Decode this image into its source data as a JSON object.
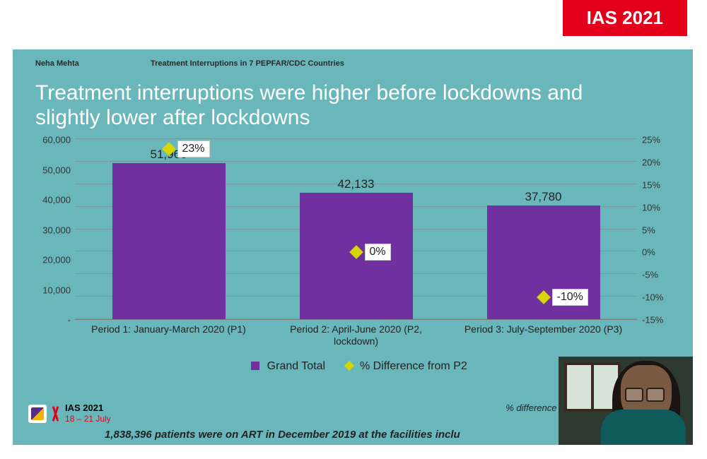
{
  "badge": {
    "text": "IAS 2021",
    "bg": "#e2001a",
    "color": "#ffffff"
  },
  "slide": {
    "bg": "#6ab7bb",
    "author": "Neha Mehta",
    "subtitle": "Treatment Interruptions in 7 PEPFAR/CDC Countries",
    "title": "Treatment interruptions were higher before lockdowns and slightly lower after lockdowns",
    "title_color": "#ffffff",
    "title_fontsize": 30
  },
  "chart": {
    "type": "bar+marker",
    "bar_color": "#7030a0",
    "marker_color": "#d6d600",
    "label_fontsize": 17,
    "axis_fontsize": 13,
    "y_left": {
      "min": 0,
      "max": 60000,
      "step": 10000,
      "ticks": [
        "-",
        "10,000",
        "20,000",
        "30,000",
        "40,000",
        "50,000",
        "60,000"
      ]
    },
    "y_right": {
      "min": -15,
      "max": 25,
      "step": 5,
      "ticks": [
        "-15%",
        "-10%",
        "-5%",
        "0%",
        "5%",
        "10%",
        "15%",
        "20%",
        "25%"
      ]
    },
    "categories": [
      "Period 1: January-March 2020 (P1)",
      "Period 2: April-June 2020 (P2, lockdown)",
      "Period 3: July-September 2020 (P3)"
    ],
    "bars": [
      {
        "value": 51966,
        "label": "51,966"
      },
      {
        "value": 42133,
        "label": "42,133"
      },
      {
        "value": 37780,
        "label": "37,780"
      }
    ],
    "markers": [
      {
        "pct": 23,
        "label": "23%"
      },
      {
        "pct": 0,
        "label": "0%"
      },
      {
        "pct": -10,
        "label": "-10%"
      }
    ],
    "legend": {
      "bar": "Grand Total",
      "marker": "% Difference from P2"
    },
    "grid_color": "rgba(120,120,120,0.45)"
  },
  "footer": {
    "ias_label": "IAS",
    "ias_year": "2021",
    "ias_dates": "18 – 21 July",
    "note_right": "% difference in Px",
    "caption": "1,838,396 patients were on ART in December 2019 at the facilities inclu"
  }
}
